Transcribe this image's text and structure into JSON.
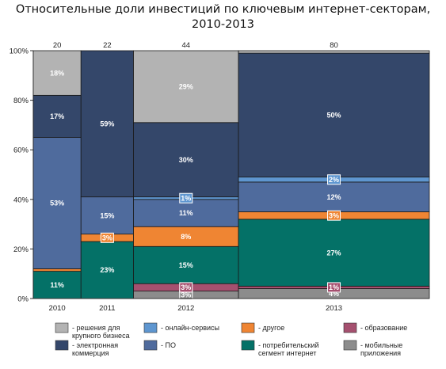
{
  "chart_data": {
    "type": "bar",
    "title_lines": [
      "Относительные доли инвестиций по ключевым интернет-секторам,",
      "2010-2013"
    ],
    "xlabel": "",
    "ylabel": "",
    "ylim": [
      0,
      100
    ],
    "y_ticks": [
      "0%",
      "20%",
      "40%",
      "60%",
      "80%",
      "100%"
    ],
    "categories": [
      "2010",
      "2011",
      "2012",
      "2013"
    ],
    "totals": [
      "20",
      "22",
      "44",
      "80"
    ],
    "series": [
      {
        "key": "mobile",
        "color": "#8c8c8c",
        "values": [
          0,
          0,
          3,
          4
        ],
        "labels": [
          "",
          "",
          "3%",
          "4%"
        ],
        "badge": [
          false,
          false,
          true,
          false
        ]
      },
      {
        "key": "education",
        "color": "#a5506f",
        "values": [
          0,
          0,
          3,
          1
        ],
        "labels": [
          "",
          "",
          "3%",
          "1%"
        ],
        "badge": [
          false,
          false,
          true,
          true
        ]
      },
      {
        "key": "consumer",
        "color": "#047167",
        "values": [
          11,
          23,
          15,
          27
        ],
        "labels": [
          "11%",
          "23%",
          "15%",
          "27%"
        ],
        "badge": [
          false,
          false,
          false,
          false
        ]
      },
      {
        "key": "other",
        "color": "#ef8533",
        "values": [
          1,
          3,
          8,
          3
        ],
        "labels": [
          "",
          "3%",
          "8%",
          "3%"
        ],
        "badge": [
          false,
          true,
          false,
          true
        ]
      },
      {
        "key": "software",
        "color": "#4f6b9d",
        "values": [
          53,
          15,
          11,
          12
        ],
        "labels": [
          "53%",
          "15%",
          "11%",
          "12%"
        ],
        "badge": [
          false,
          false,
          false,
          false
        ]
      },
      {
        "key": "online",
        "color": "#5e96d0",
        "values": [
          0,
          0,
          1,
          2
        ],
        "labels": [
          "",
          "",
          "1%",
          "2%"
        ],
        "badge": [
          false,
          false,
          true,
          true
        ]
      },
      {
        "key": "ecommerce",
        "color": "#34476a",
        "values": [
          17,
          59,
          30,
          50
        ],
        "labels": [
          "17%",
          "59%",
          "30%",
          "50%"
        ],
        "badge": [
          false,
          false,
          false,
          false
        ]
      },
      {
        "key": "enterprise",
        "color": "#b3b3b3",
        "values": [
          18,
          0,
          29,
          1
        ],
        "labels": [
          "18%",
          "",
          "29%",
          ""
        ],
        "badge": [
          false,
          false,
          false,
          false
        ]
      }
    ],
    "legend": [
      {
        "key": "enterprise",
        "color": "#b3b3b3",
        "lines": [
          "- решения для",
          "крупного бизнеса"
        ]
      },
      {
        "key": "online",
        "color": "#5e96d0",
        "lines": [
          "- онлайн-сервисы"
        ]
      },
      {
        "key": "other",
        "color": "#ef8533",
        "lines": [
          "- другое"
        ]
      },
      {
        "key": "education",
        "color": "#a5506f",
        "lines": [
          "- образование"
        ]
      },
      {
        "key": "ecommerce",
        "color": "#34476a",
        "lines": [
          "- электронная",
          "коммерция"
        ]
      },
      {
        "key": "software",
        "color": "#4f6b9d",
        "lines": [
          "- ПО"
        ]
      },
      {
        "key": "consumer",
        "color": "#047167",
        "lines": [
          "- потребительский",
          "сегмент интернет"
        ]
      },
      {
        "key": "mobile",
        "color": "#8c8c8c",
        "lines": [
          "- мобильные",
          "приложения"
        ]
      }
    ],
    "grid": false,
    "legend_position": "bottom"
  }
}
